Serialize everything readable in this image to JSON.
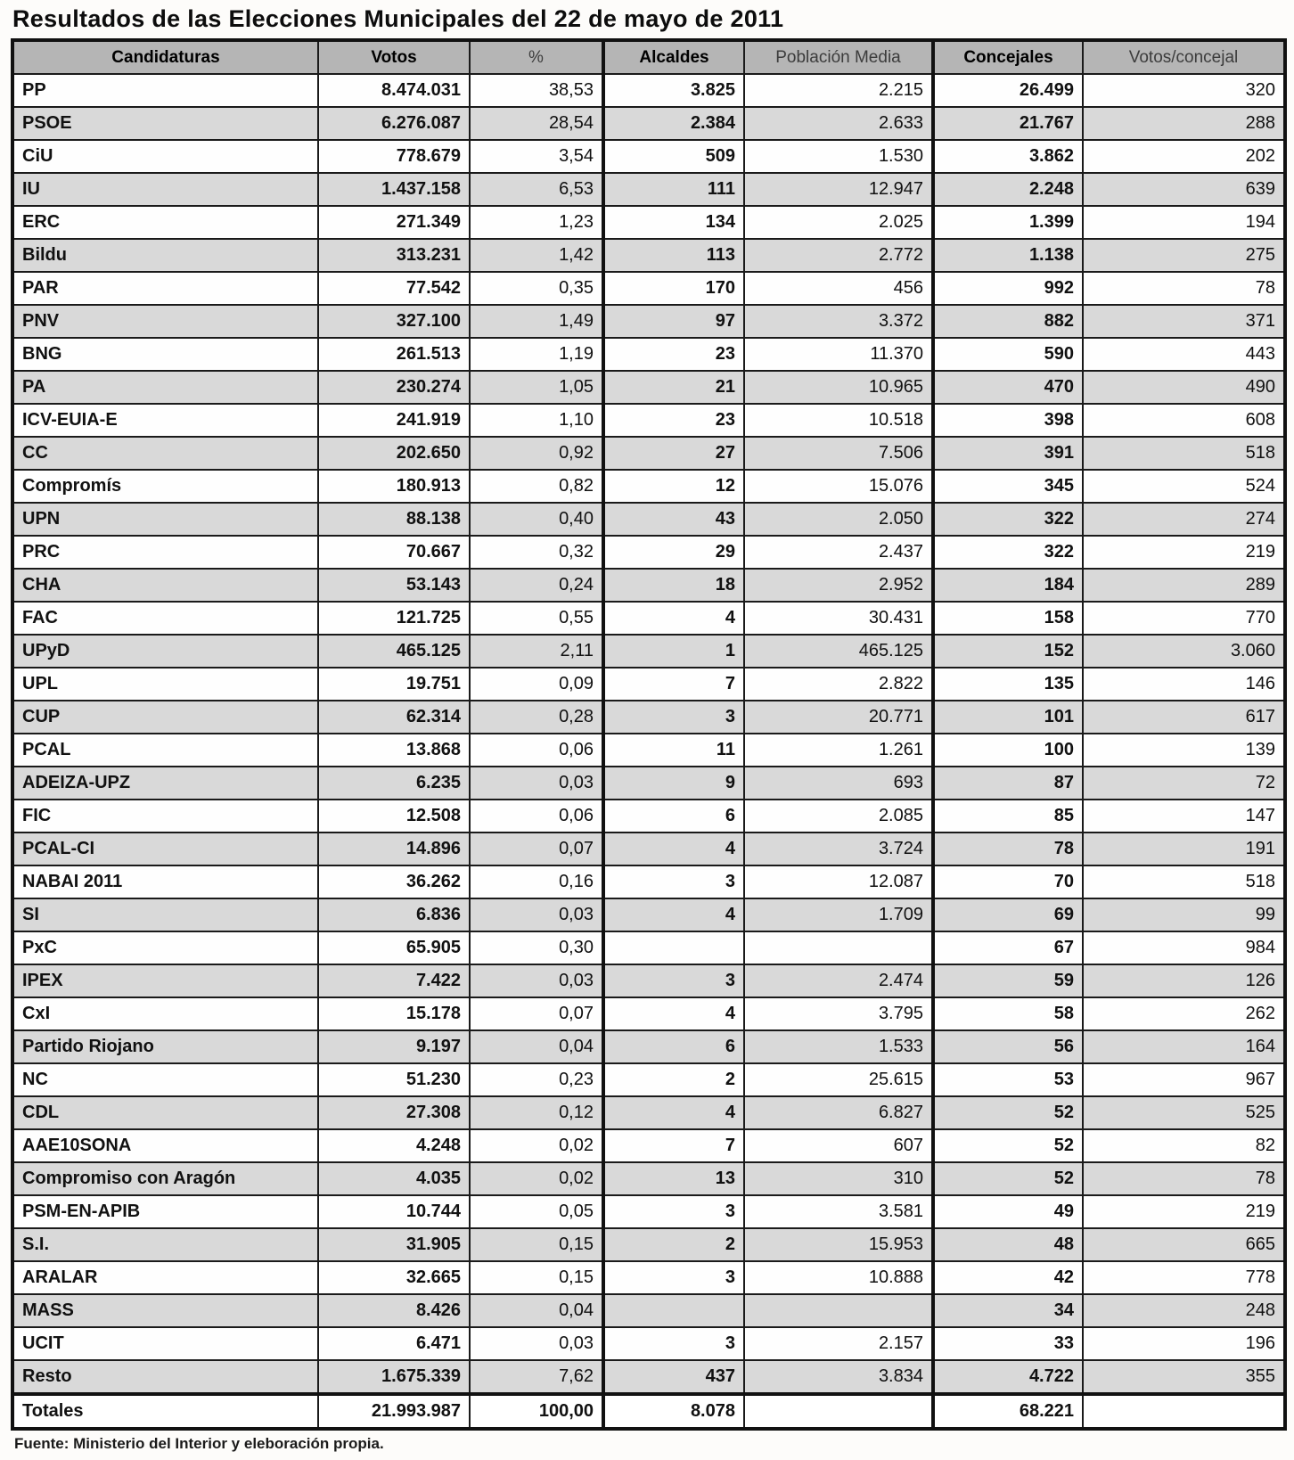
{
  "title": "Resultados de las Elecciones Municipales del 22 de mayo de 2011",
  "source": "Fuente: Ministerio del Interior y eleboración propia.",
  "colors": {
    "header_bg": "#b5b5b5",
    "row_alt_bg": "#d9d9d9",
    "border": "#111111"
  },
  "chart_data": {
    "type": "table",
    "columns": [
      "Candidaturas",
      "Votos",
      "%",
      "Alcaldes",
      "Población Media",
      "Concejales",
      "Votos/concejal"
    ],
    "rows": [
      [
        "PP",
        "8.474.031",
        "38,53",
        "3.825",
        "2.215",
        "26.499",
        "320"
      ],
      [
        "PSOE",
        "6.276.087",
        "28,54",
        "2.384",
        "2.633",
        "21.767",
        "288"
      ],
      [
        "CiU",
        "778.679",
        "3,54",
        "509",
        "1.530",
        "3.862",
        "202"
      ],
      [
        "IU",
        "1.437.158",
        "6,53",
        "111",
        "12.947",
        "2.248",
        "639"
      ],
      [
        "ERC",
        "271.349",
        "1,23",
        "134",
        "2.025",
        "1.399",
        "194"
      ],
      [
        "Bildu",
        "313.231",
        "1,42",
        "113",
        "2.772",
        "1.138",
        "275"
      ],
      [
        "PAR",
        "77.542",
        "0,35",
        "170",
        "456",
        "992",
        "78"
      ],
      [
        "PNV",
        "327.100",
        "1,49",
        "97",
        "3.372",
        "882",
        "371"
      ],
      [
        "BNG",
        "261.513",
        "1,19",
        "23",
        "11.370",
        "590",
        "443"
      ],
      [
        "PA",
        "230.274",
        "1,05",
        "21",
        "10.965",
        "470",
        "490"
      ],
      [
        "ICV-EUIA-E",
        "241.919",
        "1,10",
        "23",
        "10.518",
        "398",
        "608"
      ],
      [
        "CC",
        "202.650",
        "0,92",
        "27",
        "7.506",
        "391",
        "518"
      ],
      [
        "Compromís",
        "180.913",
        "0,82",
        "12",
        "15.076",
        "345",
        "524"
      ],
      [
        "UPN",
        "88.138",
        "0,40",
        "43",
        "2.050",
        "322",
        "274"
      ],
      [
        "PRC",
        "70.667",
        "0,32",
        "29",
        "2.437",
        "322",
        "219"
      ],
      [
        "CHA",
        "53.143",
        "0,24",
        "18",
        "2.952",
        "184",
        "289"
      ],
      [
        "FAC",
        "121.725",
        "0,55",
        "4",
        "30.431",
        "158",
        "770"
      ],
      [
        "UPyD",
        "465.125",
        "2,11",
        "1",
        "465.125",
        "152",
        "3.060"
      ],
      [
        "UPL",
        "19.751",
        "0,09",
        "7",
        "2.822",
        "135",
        "146"
      ],
      [
        "CUP",
        "62.314",
        "0,28",
        "3",
        "20.771",
        "101",
        "617"
      ],
      [
        "PCAL",
        "13.868",
        "0,06",
        "11",
        "1.261",
        "100",
        "139"
      ],
      [
        "ADEIZA-UPZ",
        "6.235",
        "0,03",
        "9",
        "693",
        "87",
        "72"
      ],
      [
        "FIC",
        "12.508",
        "0,06",
        "6",
        "2.085",
        "85",
        "147"
      ],
      [
        "PCAL-CI",
        "14.896",
        "0,07",
        "4",
        "3.724",
        "78",
        "191"
      ],
      [
        "NABAI 2011",
        "36.262",
        "0,16",
        "3",
        "12.087",
        "70",
        "518"
      ],
      [
        "SI",
        "6.836",
        "0,03",
        "4",
        "1.709",
        "69",
        "99"
      ],
      [
        "PxC",
        "65.905",
        "0,30",
        "",
        "",
        "67",
        "984"
      ],
      [
        "IPEX",
        "7.422",
        "0,03",
        "3",
        "2.474",
        "59",
        "126"
      ],
      [
        "CxI",
        "15.178",
        "0,07",
        "4",
        "3.795",
        "58",
        "262"
      ],
      [
        "Partido Riojano",
        "9.197",
        "0,04",
        "6",
        "1.533",
        "56",
        "164"
      ],
      [
        "NC",
        "51.230",
        "0,23",
        "2",
        "25.615",
        "53",
        "967"
      ],
      [
        "CDL",
        "27.308",
        "0,12",
        "4",
        "6.827",
        "52",
        "525"
      ],
      [
        "AAE10SONA",
        "4.248",
        "0,02",
        "7",
        "607",
        "52",
        "82"
      ],
      [
        "Compromiso con Aragón",
        "4.035",
        "0,02",
        "13",
        "310",
        "52",
        "78"
      ],
      [
        "PSM-EN-APIB",
        "10.744",
        "0,05",
        "3",
        "3.581",
        "49",
        "219"
      ],
      [
        "S.I.",
        "31.905",
        "0,15",
        "2",
        "15.953",
        "48",
        "665"
      ],
      [
        "ARALAR",
        "32.665",
        "0,15",
        "3",
        "10.888",
        "42",
        "778"
      ],
      [
        "MASS",
        "8.426",
        "0,04",
        "",
        "",
        "34",
        "248"
      ],
      [
        "UCIT",
        "6.471",
        "0,03",
        "3",
        "2.157",
        "33",
        "196"
      ],
      [
        "Resto",
        "1.675.339",
        "7,62",
        "437",
        "3.834",
        "4.722",
        "355"
      ]
    ],
    "totals_row": [
      "Totales",
      "21.993.987",
      "100,00",
      "8.078",
      "",
      "68.221",
      ""
    ],
    "header_styles": [
      "bold",
      "bold",
      "light",
      "bold",
      "light",
      "bold",
      "light"
    ]
  }
}
